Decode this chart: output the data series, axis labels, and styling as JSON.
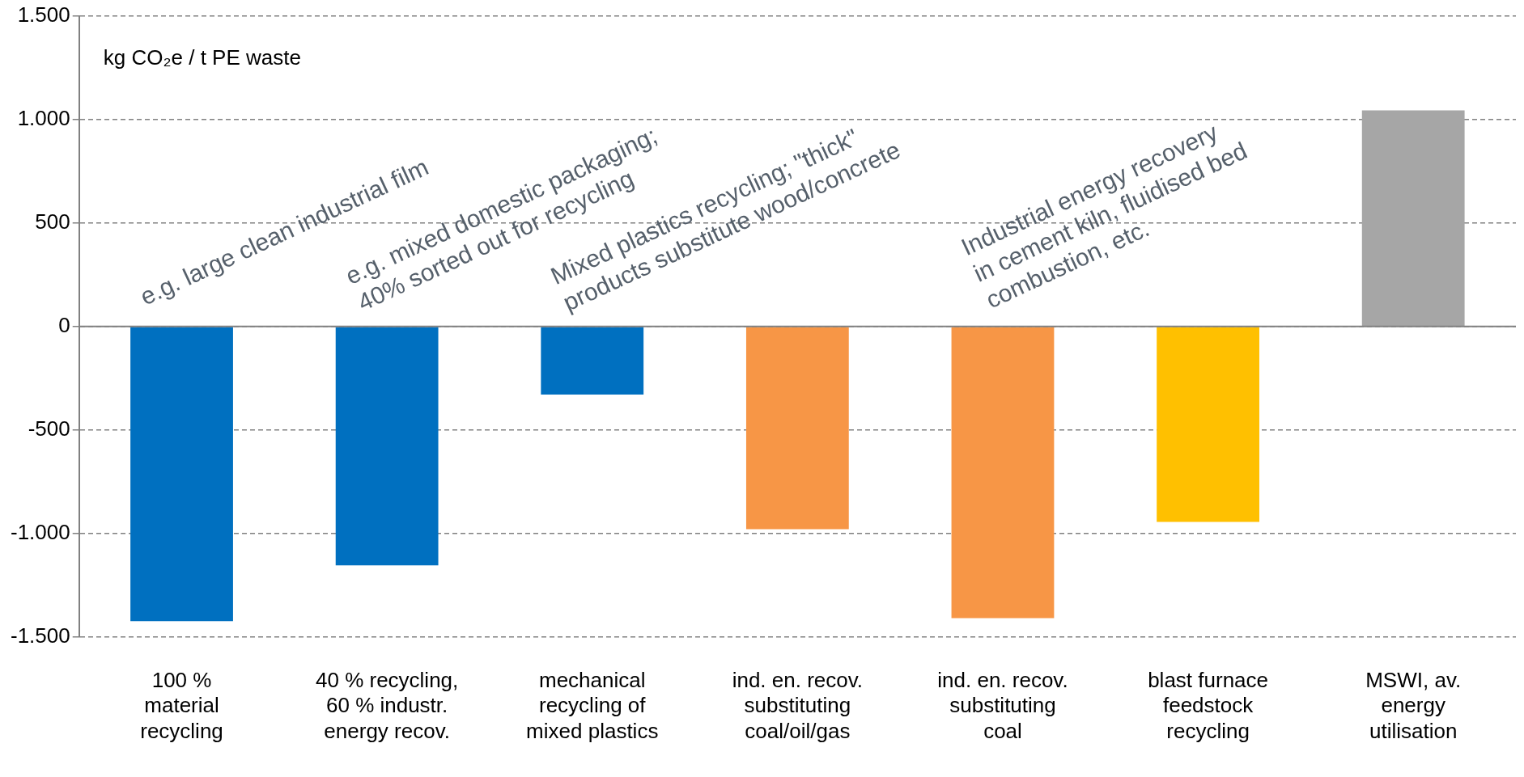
{
  "chart_data": {
    "type": "bar",
    "ylabel": "kg CO₂e / t PE waste",
    "categories": [
      "100 %\nmaterial\nrecycling",
      "40 % recycling,\n60 % industr.\nenergy recov.",
      "mechanical\nrecycling of\nmixed plastics",
      "ind. en. recov.\nsubstituting\ncoal/oil/gas",
      "ind. en. recov.\nsubstituting\ncoal",
      "blast furnace\nfeedstock\nrecycling",
      "MSWI, av.\nenergy\nutilisation"
    ],
    "values": [
      -1425,
      -1155,
      -330,
      -980,
      -1410,
      -945,
      1045
    ],
    "colors": [
      "#0070c0",
      "#0070c0",
      "#0070c0",
      "#f79646",
      "#f79646",
      "#ffc000",
      "#a6a6a6"
    ],
    "ylim": [
      -1500,
      1500
    ],
    "yticks": [
      {
        "value": -1500,
        "label": "-1.500"
      },
      {
        "value": -1000,
        "label": "-1.000"
      },
      {
        "value": -500,
        "label": "-500"
      },
      {
        "value": 0,
        "label": "0"
      },
      {
        "value": 500,
        "label": "500"
      },
      {
        "value": 1000,
        "label": "1.000"
      },
      {
        "value": 1500,
        "label": "1.500"
      }
    ],
    "grid": "y",
    "legend": false,
    "annotations": [
      "e.g. large clean industrial film",
      "e.g. mixed domestic packaging;\n40% sorted out for recycling",
      "Mixed plastics recycling; \"thick\"\nproducts substitute wood/concrete",
      "Industrial energy recovery\nin cement kiln, fluidised bed\ncombustion, etc."
    ]
  }
}
